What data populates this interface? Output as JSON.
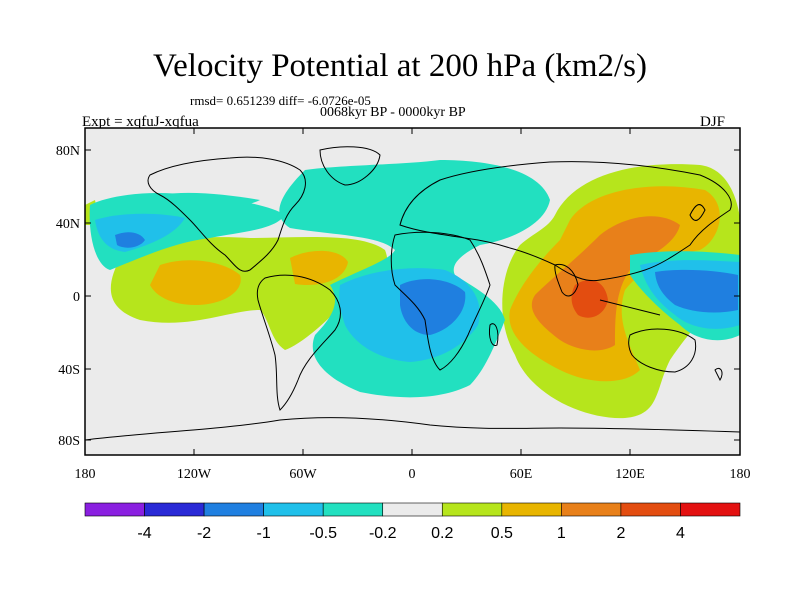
{
  "figure": {
    "title": "Velocity Potential at 200 hPa (km2/s)",
    "stats": "rmsd= 0.651239 diff= -6.0726e-05",
    "period": "0068kyr BP - 0000kyr BP",
    "experiment": "Expt = xqfuJ-xqfua",
    "season": "DJF"
  },
  "axes": {
    "x_ticks": [
      "180",
      "120W",
      "60W",
      "0",
      "60E",
      "120E",
      "180"
    ],
    "y_ticks": [
      "80N",
      "40N",
      "0",
      "40S",
      "80S"
    ]
  },
  "colorbar": {
    "labels": [
      "-4",
      "-2",
      "-1",
      "-0.5",
      "-0.2",
      "0.2",
      "0.5",
      "1",
      "2",
      "4"
    ],
    "colors": [
      "#8a1fe0",
      "#2a2ad6",
      "#1f7fe0",
      "#20c0ea",
      "#22e0c0",
      "#ebebeb",
      "#b6e51c",
      "#e8b500",
      "#e8801a",
      "#e34d10",
      "#e31111"
    ]
  },
  "chart_data": {
    "type": "contour-map",
    "variable": "Velocity Potential at 200 hPa",
    "units": "km2/s",
    "levels": [
      -4,
      -2,
      -1,
      -0.5,
      -0.2,
      0.2,
      0.5,
      1,
      2,
      4
    ],
    "x_range_deg": [
      -180,
      180
    ],
    "y_range_deg": [
      -90,
      90
    ],
    "features": [
      {
        "region": "West Pacific / Maritime Continent",
        "value_range": "-2 to -1"
      },
      {
        "region": "Indian Ocean / East Africa",
        "value_range": "1 to 2"
      },
      {
        "region": "Tropical Atlantic / Central Africa",
        "value_range": "-1 to -0.5"
      },
      {
        "region": "East Pacific",
        "value_range": "0.5 to 1"
      }
    ]
  }
}
